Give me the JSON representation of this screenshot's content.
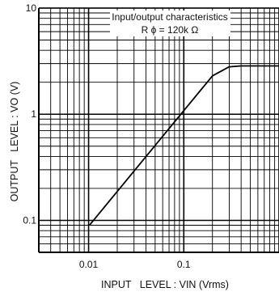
{
  "chart_data": {
    "type": "line",
    "x_scale": "log",
    "y_scale": "log",
    "xlim": [
      0.003,
      1
    ],
    "ylim": [
      0.05,
      10
    ],
    "grid": true,
    "title": "Input/output characteristics",
    "subtitle": "R ϕ = 120k Ω",
    "xlabel": "INPUT   LEVEL : VIN (Vrms)",
    "ylabel": "OUTPUT   LEVEL : VO (V)",
    "x_ticks": [
      {
        "value": 0.01,
        "label": "0.01"
      },
      {
        "value": 0.1,
        "label": "0.1"
      }
    ],
    "y_ticks": [
      {
        "value": 10,
        "label": "10"
      },
      {
        "value": 1,
        "label": "1"
      },
      {
        "value": 0.1,
        "label": "0.1"
      }
    ],
    "series": [
      {
        "x": [
          0.0102,
          0.2,
          0.3,
          0.4,
          1
        ],
        "y": [
          0.09,
          2.3,
          2.8,
          2.85,
          2.85
        ]
      }
    ]
  }
}
